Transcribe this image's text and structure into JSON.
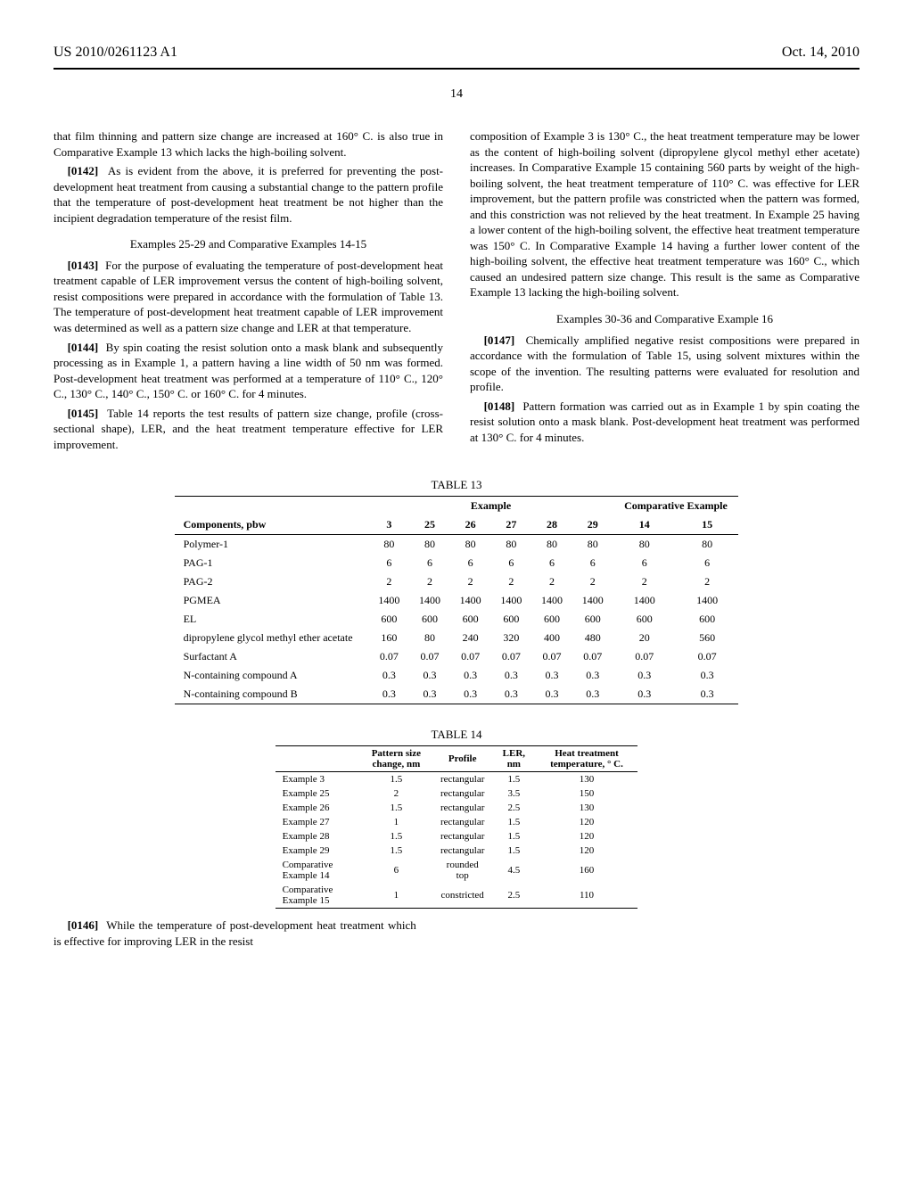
{
  "header": {
    "pub_number": "US 2010/0261123 A1",
    "pub_date": "Oct. 14, 2010",
    "page_number": "14"
  },
  "left_col": {
    "p0142_prefix": "that film thinning and pattern size change are increased at 160° C. is also true in Comparative Example 13 which lacks the high-boiling solvent.",
    "p0142": "As is evident from the above, it is preferred for preventing the post-development heat treatment from causing a substantial change to the pattern profile that the temperature of post-development heat treatment be not higher than the incipient degradation temperature of the resist film.",
    "heading_25_29": "Examples 25-29 and Comparative Examples 14-15",
    "p0143": "For the purpose of evaluating the temperature of post-development heat treatment capable of LER improvement versus the content of high-boiling solvent, resist compositions were prepared in accordance with the formulation of Table 13. The temperature of post-development heat treatment capable of LER improvement was determined as well as a pattern size change and LER at that temperature.",
    "p0144": "By spin coating the resist solution onto a mask blank and subsequently processing as in Example 1, a pattern having a line width of 50 nm was formed. Post-development heat treatment was performed at a temperature of 110° C., 120° C., 130° C., 140° C., 150° C. or 160° C. for 4 minutes.",
    "p0145": "Table 14 reports the test results of pattern size change, profile (cross-sectional shape), LER, and the heat treatment temperature effective for LER improvement."
  },
  "right_col": {
    "p_cont": "composition of Example 3 is 130° C., the heat treatment temperature may be lower as the content of high-boiling solvent (dipropylene glycol methyl ether acetate) increases. In Comparative Example 15 containing 560 parts by weight of the high-boiling solvent, the heat treatment temperature of 110° C. was effective for LER improvement, but the pattern profile was constricted when the pattern was formed, and this constriction was not relieved by the heat treatment. In Example 25 having a lower content of the high-boiling solvent, the effective heat treatment temperature was 150° C. In Comparative Example 14 having a further lower content of the high-boiling solvent, the effective heat treatment temperature was 160° C., which caused an undesired pattern size change. This result is the same as Comparative Example 13 lacking the high-boiling solvent.",
    "heading_30_36": "Examples 30-36 and Comparative Example 16",
    "p0147": "Chemically amplified negative resist compositions were prepared in accordance with the formulation of Table 15, using solvent mixtures within the scope of the invention. The resulting patterns were evaluated for resolution and profile.",
    "p0148": "Pattern formation was carried out as in Example 1 by spin coating the resist solution onto a mask blank. Post-development heat treatment was performed at 130° C. for 4 minutes."
  },
  "table13": {
    "title": "TABLE 13",
    "group_example": "Example",
    "group_comp": "Comparative Example",
    "row_header": "Components, pbw",
    "cols": [
      "3",
      "25",
      "26",
      "27",
      "28",
      "29",
      "14",
      "15"
    ],
    "rows": [
      {
        "label": "Polymer-1",
        "v": [
          "80",
          "80",
          "80",
          "80",
          "80",
          "80",
          "80",
          "80"
        ]
      },
      {
        "label": "PAG-1",
        "v": [
          "6",
          "6",
          "6",
          "6",
          "6",
          "6",
          "6",
          "6"
        ]
      },
      {
        "label": "PAG-2",
        "v": [
          "2",
          "2",
          "2",
          "2",
          "2",
          "2",
          "2",
          "2"
        ]
      },
      {
        "label": "PGMEA",
        "v": [
          "1400",
          "1400",
          "1400",
          "1400",
          "1400",
          "1400",
          "1400",
          "1400"
        ]
      },
      {
        "label": "EL",
        "v": [
          "600",
          "600",
          "600",
          "600",
          "600",
          "600",
          "600",
          "600"
        ]
      },
      {
        "label": "dipropylene glycol methyl ether acetate",
        "v": [
          "160",
          "80",
          "240",
          "320",
          "400",
          "480",
          "20",
          "560"
        ]
      },
      {
        "label": "Surfactant A",
        "v": [
          "0.07",
          "0.07",
          "0.07",
          "0.07",
          "0.07",
          "0.07",
          "0.07",
          "0.07"
        ]
      },
      {
        "label": "N-containing compound A",
        "v": [
          "0.3",
          "0.3",
          "0.3",
          "0.3",
          "0.3",
          "0.3",
          "0.3",
          "0.3"
        ]
      },
      {
        "label": "N-containing compound B",
        "v": [
          "0.3",
          "0.3",
          "0.3",
          "0.3",
          "0.3",
          "0.3",
          "0.3",
          "0.3"
        ]
      }
    ]
  },
  "table14": {
    "title": "TABLE 14",
    "headers": [
      "",
      "Pattern size change, nm",
      "Profile",
      "LER, nm",
      "Heat treatment temperature, ° C."
    ],
    "rows": [
      {
        "label": "Example 3",
        "v": [
          "1.5",
          "rectangular",
          "1.5",
          "130"
        ]
      },
      {
        "label": "Example 25",
        "v": [
          "2",
          "rectangular",
          "3.5",
          "150"
        ]
      },
      {
        "label": "Example 26",
        "v": [
          "1.5",
          "rectangular",
          "2.5",
          "130"
        ]
      },
      {
        "label": "Example 27",
        "v": [
          "1",
          "rectangular",
          "1.5",
          "120"
        ]
      },
      {
        "label": "Example 28",
        "v": [
          "1.5",
          "rectangular",
          "1.5",
          "120"
        ]
      },
      {
        "label": "Example 29",
        "v": [
          "1.5",
          "rectangular",
          "1.5",
          "120"
        ]
      },
      {
        "label": "Comparative Example 14",
        "v": [
          "6",
          "rounded top",
          "4.5",
          "160"
        ]
      },
      {
        "label": "Comparative Example 15",
        "v": [
          "1",
          "constricted",
          "2.5",
          "110"
        ]
      }
    ]
  },
  "below_t14": {
    "p0146": "While the temperature of post-development heat treatment which is effective for improving LER in the resist"
  }
}
